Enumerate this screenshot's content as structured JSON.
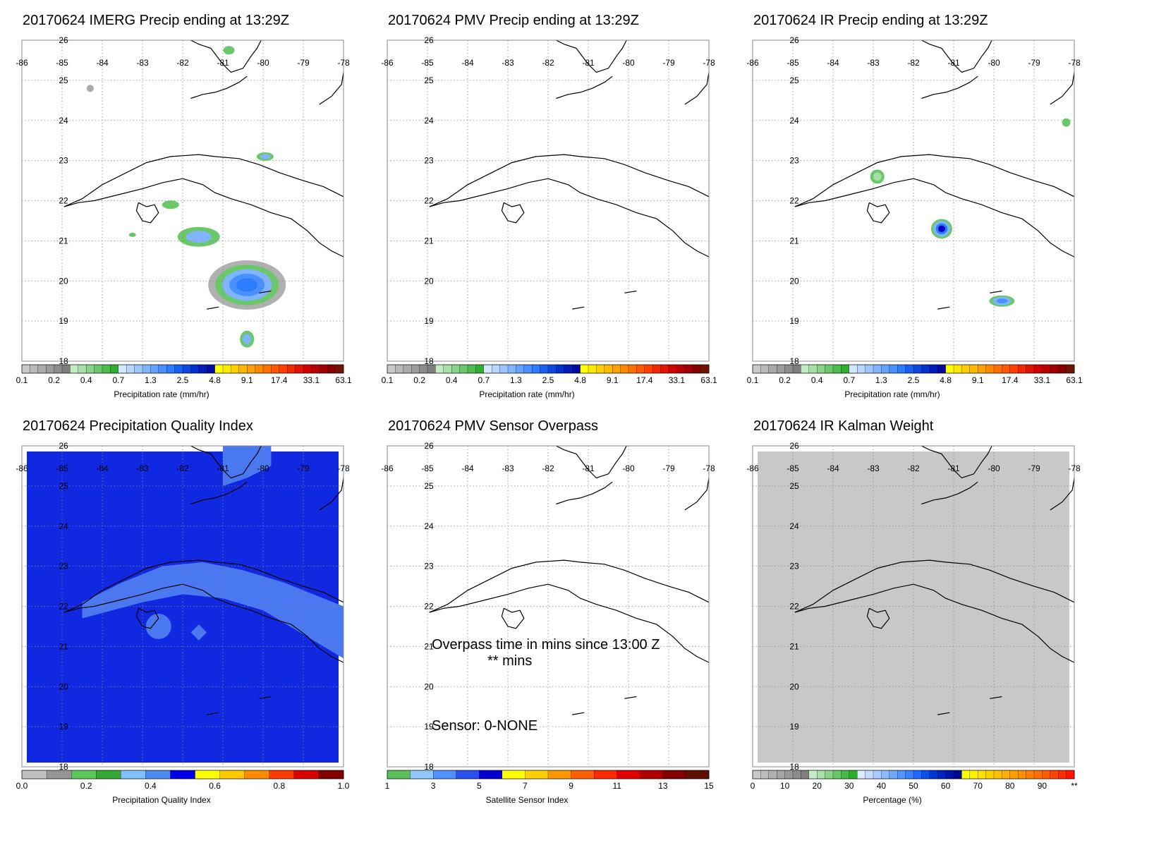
{
  "date": "20170624",
  "panels": [
    {
      "title": "20170624 IMERG Precip ending at 13:29Z",
      "colorbar": "precip"
    },
    {
      "title": "20170624 PMV Precip ending at 13:29Z",
      "colorbar": "precip"
    },
    {
      "title": "20170624 IR Precip ending at 13:29Z",
      "colorbar": "precip"
    },
    {
      "title": "20170624 Precipitation Quality Index",
      "colorbar": "pqi"
    },
    {
      "title": "20170624 PMV Sensor Overpass",
      "colorbar": "sensor"
    },
    {
      "title": "20170624 IR Kalman Weight",
      "colorbar": "kalman"
    }
  ],
  "map_axes": {
    "lon_labels": [
      "-86",
      "-85",
      "-84",
      "-83",
      "-82",
      "-81",
      "-80",
      "-79",
      "-78"
    ],
    "lat_labels": [
      "26",
      "25",
      "24",
      "23",
      "22",
      "21",
      "20",
      "19",
      "18"
    ]
  },
  "colorbars": {
    "precip": {
      "title": "Precipitation rate (mm/hr)",
      "labels": [
        "0.1",
        "0.2",
        "0.4",
        "0.7",
        "1.3",
        "2.5",
        "4.8",
        "9.1",
        "17.4",
        "33.1",
        "63.1"
      ],
      "colors": [
        "#c8c8c8",
        "#b9b9b9",
        "#aaaaaa",
        "#9b9b9b",
        "#8c8c8c",
        "#7e7e7e",
        "#c4ecc4",
        "#a6e0a6",
        "#88d488",
        "#6ac86a",
        "#4cbc4c",
        "#2eb02e",
        "#d4e6ff",
        "#b8d6ff",
        "#9cc6ff",
        "#80b4ff",
        "#64a2ff",
        "#4890ff",
        "#2c7cff",
        "#1a60f0",
        "#0c48e0",
        "#0030d0",
        "#001cb8",
        "#000ca0",
        "#ffff00",
        "#ffe800",
        "#ffd000",
        "#ffb800",
        "#ffa000",
        "#ff8800",
        "#ff7000",
        "#ff5800",
        "#ff4000",
        "#f02800",
        "#e01400",
        "#d00000",
        "#b80000",
        "#a00000",
        "#880000",
        "#701400"
      ]
    },
    "pqi": {
      "title": "Precipitation Quality Index",
      "labels": [
        "0.0",
        "0.2",
        "0.4",
        "0.6",
        "0.8",
        "1.0"
      ],
      "colors": [
        "#c0c0c0",
        "#969696",
        "#5cc85c",
        "#34a834",
        "#80c0ff",
        "#4a8cf0",
        "#0000e8",
        "#ffff00",
        "#ffc800",
        "#ff8c00",
        "#ff3c00",
        "#d80000",
        "#800000"
      ]
    },
    "sensor": {
      "title": "Satellite Sensor Index",
      "labels": [
        "1",
        "3",
        "5",
        "7",
        "9",
        "11",
        "13",
        "15"
      ],
      "colors": [
        "#5cc05c",
        "#90c8ff",
        "#5090ff",
        "#2850f0",
        "#0000d0",
        "#ffff00",
        "#ffd000",
        "#ff9800",
        "#ff6000",
        "#ff2800",
        "#e00000",
        "#b00000",
        "#800000",
        "#601000"
      ]
    },
    "kalman": {
      "title": "Percentage (%)",
      "labels": [
        "0",
        "10",
        "20",
        "30",
        "40",
        "50",
        "60",
        "70",
        "80",
        "90",
        "**"
      ],
      "colors": [
        "#c8c8c8",
        "#bcbcbc",
        "#b0b0b0",
        "#a4a4a4",
        "#989898",
        "#8c8c8c",
        "#808080",
        "#c8ecc8",
        "#a8e0a8",
        "#88d488",
        "#68c868",
        "#48bc48",
        "#28b028",
        "#e0ecff",
        "#c4dcff",
        "#a8ccff",
        "#8cbaff",
        "#70a8ff",
        "#5496ff",
        "#3882ff",
        "#1c6aff",
        "#0850f0",
        "#0038d8",
        "#0024c0",
        "#0014a8",
        "#000890",
        "#ffff00",
        "#fff000",
        "#ffe000",
        "#ffd000",
        "#ffc000",
        "#ffb000",
        "#ffa000",
        "#ff9000",
        "#ff8000",
        "#ff7000",
        "#ff5c00",
        "#ff4400",
        "#ff2c00",
        "#ff1400"
      ]
    }
  },
  "sensor_overpass": {
    "line1": "Overpass time in mins since 13:00 Z",
    "line2": "** mins",
    "sensor": "Sensor:   0-NONE"
  }
}
